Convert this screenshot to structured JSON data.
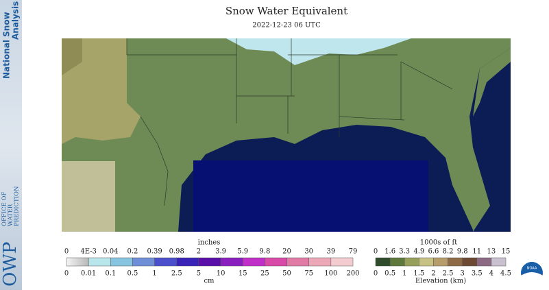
{
  "sidebar": {
    "title_lines": [
      "National Snow",
      "Analysis"
    ],
    "org_abbr": "OWP",
    "org_lines": [
      "OFFICE OF",
      "WATER",
      "PREDICTION"
    ]
  },
  "header": {
    "title": "Snow Water Equivalent",
    "subtitle": "2022-12-23 06 UTC"
  },
  "legend": {
    "snow": {
      "unit_top": "inches",
      "labels_top": [
        "0",
        "4E-3",
        "0.04",
        "0.2",
        "0.39",
        "0.98",
        "2",
        "3.9",
        "5.9",
        "9.8",
        "20",
        "30",
        "39",
        "79"
      ],
      "labels_bottom": [
        "0",
        "0.01",
        "0.1",
        "0.5",
        "1",
        "2.5",
        "5",
        "10",
        "15",
        "25",
        "50",
        "75",
        "100",
        "200"
      ],
      "unit_bottom": "cm"
    },
    "elevation": {
      "unit_top": "1000s of ft",
      "labels_top": [
        "0",
        "1.6",
        "3.3",
        "4.9",
        "6.6",
        "8.2",
        "9.8",
        "11",
        "13",
        "15"
      ],
      "labels_bottom": [
        "0",
        "0.5",
        "1",
        "1.5",
        "2",
        "2.5",
        "3",
        "3.5",
        "4",
        "4.5"
      ],
      "unit_bottom": "Elevation (km)"
    }
  },
  "logo": "NOAA"
}
